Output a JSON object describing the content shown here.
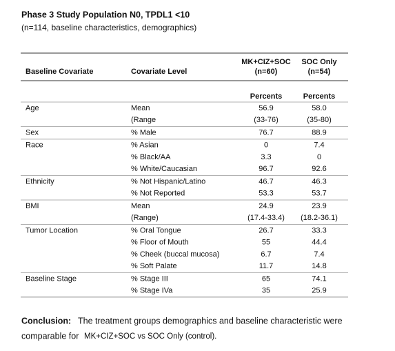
{
  "header": {
    "title": "Phase 3 Study Population N0, TPDL1 <10",
    "subtitle": "(n=114, baseline characteristics, demographics)"
  },
  "table": {
    "columns": [
      "Baseline Covariate",
      "Covariate Level"
    ],
    "arms": [
      {
        "name": "MK+CIZ+SOC",
        "n": "(n=60)",
        "unit": "Percents"
      },
      {
        "name": "SOC Only",
        "n": "(n=54)",
        "unit": "Percents"
      }
    ],
    "groups": [
      {
        "covariate": "Age",
        "rows": [
          [
            "Mean",
            "56.9",
            "58.0"
          ],
          [
            "(Range",
            "(33-76)",
            "(35-80)"
          ]
        ]
      },
      {
        "covariate": "Sex",
        "rows": [
          [
            "% Male",
            "76.7",
            "88.9"
          ]
        ]
      },
      {
        "covariate": "Race",
        "rows": [
          [
            "% Asian",
            "0",
            "7.4"
          ],
          [
            "% Black/AA",
            "3.3",
            "0"
          ],
          [
            "% White/Caucasian",
            "96.7",
            "92.6"
          ]
        ]
      },
      {
        "covariate": "Ethnicity",
        "rows": [
          [
            "% Not Hispanic/Latino",
            "46.7",
            "46.3"
          ],
          [
            "% Not Reported",
            "53.3",
            "53.7"
          ]
        ]
      },
      {
        "covariate": "BMI",
        "rows": [
          [
            "Mean",
            "24.9",
            "23.9"
          ],
          [
            "(Range)",
            "(17.4-33.4)",
            "(18.2-36.1)"
          ]
        ]
      },
      {
        "covariate": "Tumor Location",
        "rows": [
          [
            "% Oral Tongue",
            "26.7",
            "33.3"
          ],
          [
            "% Floor of Mouth",
            "55",
            "44.4"
          ],
          [
            "% Cheek (buccal mucosa)",
            "6.7",
            "7.4"
          ],
          [
            "% Soft Palate",
            "11.7",
            "14.8"
          ]
        ]
      },
      {
        "covariate": "Baseline Stage",
        "rows": [
          [
            "% Stage III",
            "65",
            "74.1"
          ],
          [
            "% Stage IVa",
            "35",
            "25.9"
          ]
        ]
      }
    ]
  },
  "conclusion": {
    "label": "Conclusion:",
    "line1": "The treatment groups demographics and baseline characteristic were",
    "line2": "comparable for",
    "line2b": "MK+CIZ+SOC vs SOC Only (control)."
  }
}
